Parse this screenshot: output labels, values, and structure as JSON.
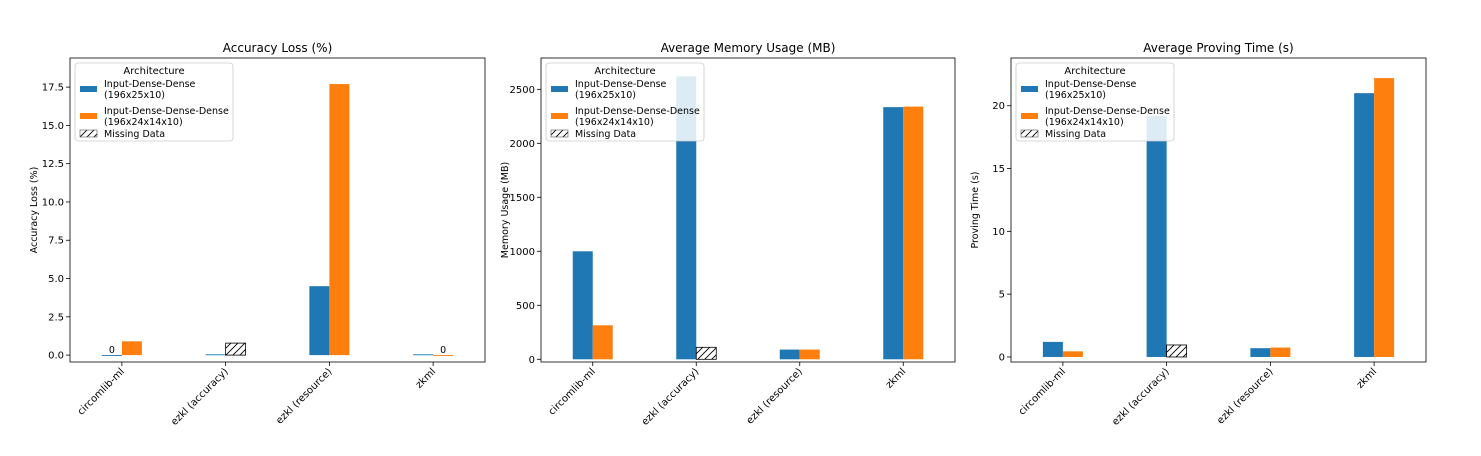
{
  "colors": {
    "series1": "#1f77b4",
    "series2": "#ff7f0e",
    "missing": "#808080"
  },
  "legend": {
    "title": "Architecture",
    "entries": [
      {
        "line1": "Input-Dense-Dense",
        "line2": "(196x25x10)"
      },
      {
        "line1": "Input-Dense-Dense-Dense",
        "line2": "(196x24x14x10)"
      },
      {
        "line1": "Missing Data"
      }
    ]
  },
  "chart_data": [
    {
      "type": "bar",
      "title": "Accuracy Loss (%)",
      "ylabel": "Accuracy Loss (%)",
      "xlabel": "",
      "categories": [
        "circomlib-ml",
        "ezkl (accuracy)",
        "ezkl (resource)",
        "zkml"
      ],
      "series": [
        {
          "name": "Input-Dense-Dense (196x25x10)",
          "values": [
            0,
            0.05,
            4.5,
            0.05
          ]
        },
        {
          "name": "Input-Dense-Dense-Dense (196x24x14x10)",
          "values": [
            0.9,
            null,
            17.7,
            0
          ]
        }
      ],
      "missing": [
        {
          "category": "ezkl (accuracy)",
          "series": 1
        }
      ],
      "annotations": [
        {
          "category": "circomlib-ml",
          "series": 0,
          "text": "0"
        },
        {
          "category": "zkml",
          "series": 1,
          "text": "0"
        }
      ],
      "ylim": [
        -0.45,
        19.4
      ],
      "yticks": [
        0.0,
        2.5,
        5.0,
        7.5,
        10.0,
        12.5,
        15.0,
        17.5
      ],
      "ytick_labels": [
        "0.0",
        "2.5",
        "5.0",
        "7.5",
        "10.0",
        "12.5",
        "15.0",
        "17.5"
      ],
      "legend_placement": "upper-left",
      "grid": false
    },
    {
      "type": "bar",
      "title": "Average Memory Usage (MB)",
      "ylabel": "Memory Usage (MB)",
      "xlabel": "",
      "categories": [
        "circomlib-ml",
        "ezkl (accuracy)",
        "ezkl (resource)",
        "zkml"
      ],
      "series": [
        {
          "name": "Input-Dense-Dense (196x25x10)",
          "values": [
            1000,
            2620,
            90,
            2335
          ]
        },
        {
          "name": "Input-Dense-Dense-Dense (196x24x14x10)",
          "values": [
            315,
            null,
            90,
            2340
          ]
        }
      ],
      "missing": [
        {
          "category": "ezkl (accuracy)",
          "series": 1
        }
      ],
      "annotations": [],
      "ylim": [
        -25,
        2790
      ],
      "yticks": [
        0,
        500,
        1000,
        1500,
        2000,
        2500
      ],
      "ytick_labels": [
        "0",
        "500",
        "1000",
        "1500",
        "2000",
        "2500"
      ],
      "legend_placement": "upper-left",
      "grid": false
    },
    {
      "type": "bar",
      "title": "Average Proving Time (s)",
      "ylabel": "Proving Time (s)",
      "xlabel": "",
      "categories": [
        "circomlib-ml",
        "ezkl (accuracy)",
        "ezkl (resource)",
        "zkml"
      ],
      "series": [
        {
          "name": "Input-Dense-Dense (196x25x10)",
          "values": [
            1.2,
            19.2,
            0.7,
            21.0
          ]
        },
        {
          "name": "Input-Dense-Dense-Dense (196x24x14x10)",
          "values": [
            0.45,
            null,
            0.75,
            22.2
          ]
        }
      ],
      "missing": [
        {
          "category": "ezkl (accuracy)",
          "series": 1
        }
      ],
      "annotations": [],
      "ylim": [
        -0.4,
        23.8
      ],
      "yticks": [
        0,
        5,
        10,
        15,
        20
      ],
      "ytick_labels": [
        "0",
        "5",
        "10",
        "15",
        "20"
      ],
      "legend_placement": "upper-left",
      "grid": false
    }
  ]
}
